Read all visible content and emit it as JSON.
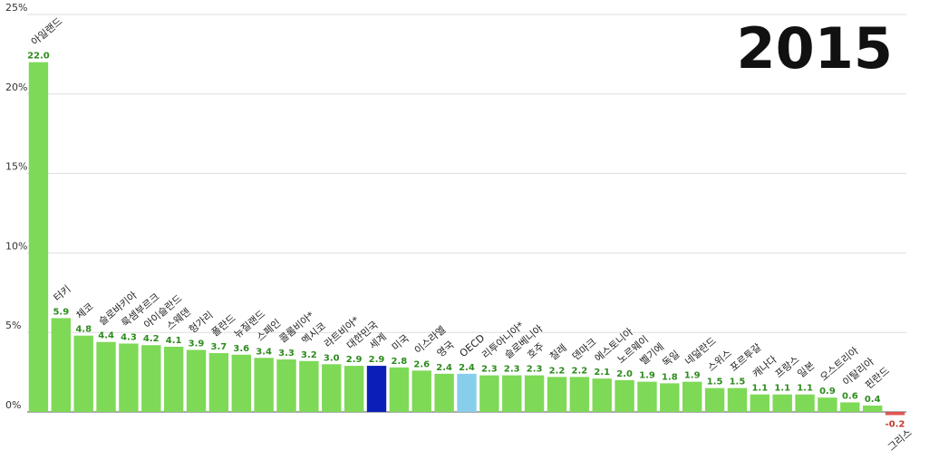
{
  "chart_data": {
    "type": "bar",
    "year": "2015",
    "ylim": [
      0,
      25
    ],
    "yticks": [
      "0%",
      "5%",
      "10%",
      "15%",
      "20%",
      "25%"
    ],
    "grid": true,
    "categories": [
      "아일랜드",
      "터키",
      "체코",
      "슬로바키아",
      "룩셈부르크",
      "아이슬란드",
      "스웨덴",
      "헝가리",
      "폴란드",
      "뉴질랜드",
      "스페인",
      "콜롬비아*",
      "멕시코",
      "라트비아*",
      "대한민국",
      "세계",
      "미국",
      "이스라엘",
      "영국",
      "OECD",
      "리투아니아*",
      "슬로베니아",
      "호주",
      "칠레",
      "덴마크",
      "에스토니아",
      "노르웨이",
      "벨기에",
      "독일",
      "네덜란드",
      "스위스",
      "포르투갈",
      "캐나다",
      "프랑스",
      "일본",
      "오스트리아",
      "이탈리아",
      "핀란드",
      "그리스"
    ],
    "values": [
      22.0,
      5.9,
      4.8,
      4.4,
      4.3,
      4.2,
      4.1,
      3.9,
      3.7,
      3.6,
      3.4,
      3.3,
      3.2,
      3.0,
      2.9,
      2.9,
      2.8,
      2.6,
      2.4,
      2.4,
      2.3,
      2.3,
      2.3,
      2.2,
      2.2,
      2.1,
      2.0,
      1.9,
      1.8,
      1.9,
      1.5,
      1.5,
      1.1,
      1.1,
      1.1,
      0.9,
      0.6,
      0.4,
      -0.2
    ],
    "value_labels": [
      "22.0",
      "5.9",
      "4.8",
      "4.4",
      "4.3",
      "4.2",
      "4.1",
      "3.9",
      "3.7",
      "3.6",
      "3.4",
      "3.3",
      "3.2",
      "3.0",
      "2.9",
      "2.9",
      "2.8",
      "2.6",
      "2.4",
      "2.4",
      "2.3",
      "2.3",
      "2.3",
      "2.2",
      "2.2",
      "2.1",
      "2.0",
      "1.9",
      "1.8",
      "1.9",
      "1.5",
      "1.5",
      "1.1",
      "1.1",
      "1.1",
      "0.9",
      "0.6",
      "0.4",
      "-0.2"
    ],
    "colors": {
      "bar": "#7ed957",
      "bar_highlight": "#0a1fb8",
      "bar_oecd": "#87ceeb",
      "bar_negative": "#e05555",
      "value_text": "#2e8b1e",
      "value_text_negative": "#c0392b",
      "grid": "#dddddd",
      "axis": "#555555"
    }
  }
}
